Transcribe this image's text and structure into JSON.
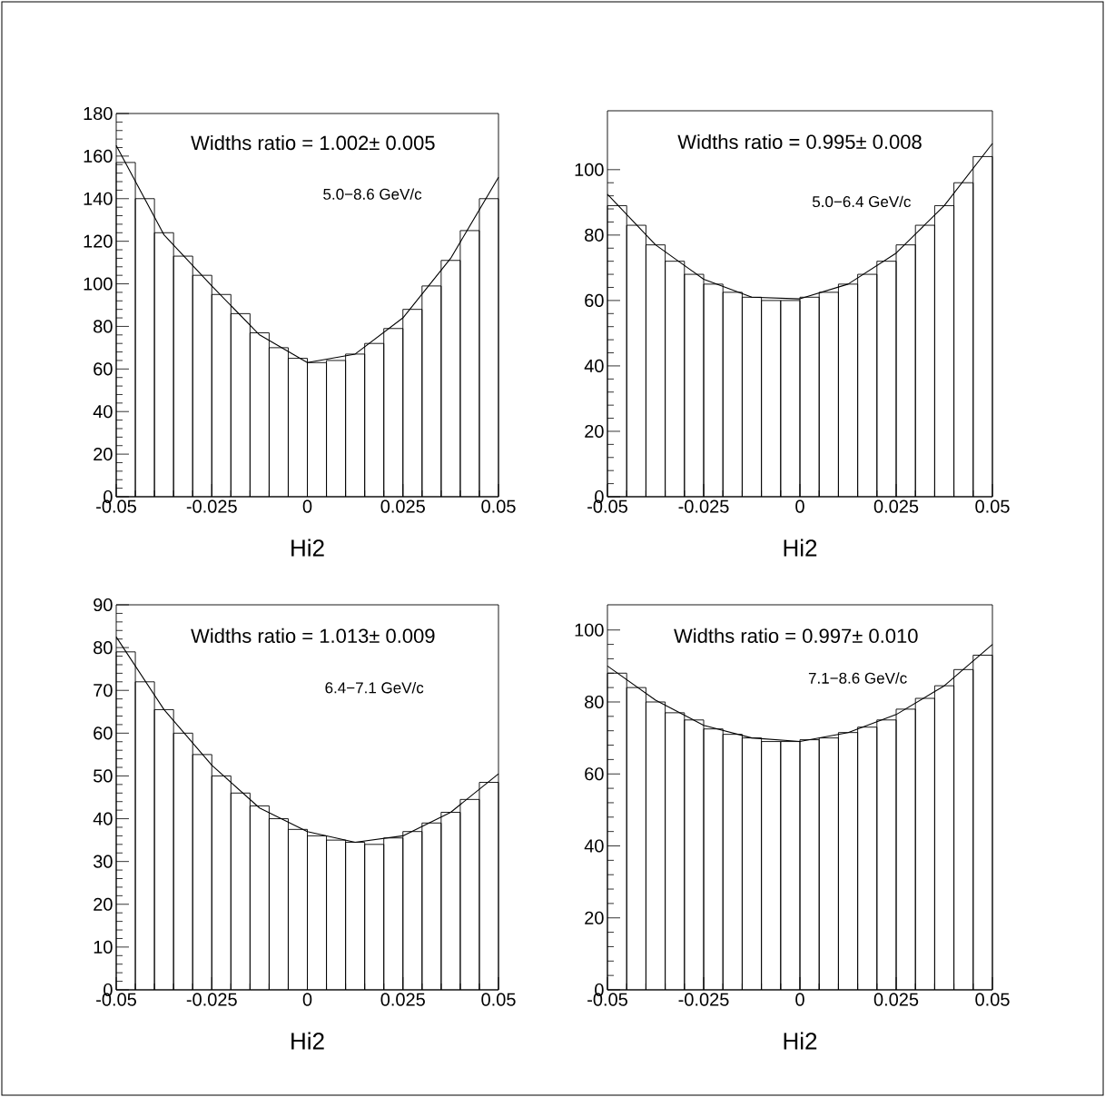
{
  "chart_data": [
    {
      "type": "histogram",
      "xlabel": "Hi2",
      "color": "#000000",
      "xlim": [
        -0.05,
        0.05
      ],
      "ylim": [
        0,
        180
      ],
      "xticks": [
        -0.05,
        -0.025,
        0,
        0.025,
        0.05
      ],
      "yticks": [
        0,
        20,
        40,
        60,
        80,
        100,
        120,
        140,
        160,
        180
      ],
      "bins": [
        -0.05,
        -0.045,
        -0.04,
        -0.035,
        -0.03,
        -0.025,
        -0.02,
        -0.015,
        -0.01,
        -0.005,
        0,
        0.005,
        0.01,
        0.015,
        0.02,
        0.025,
        0.03,
        0.035,
        0.04,
        0.045,
        0.05
      ],
      "values": [
        157,
        140,
        124,
        113,
        104,
        95,
        86,
        77,
        70,
        65,
        63,
        64,
        67,
        72,
        79,
        88,
        99,
        111,
        125,
        140
      ],
      "series": [
        {
          "type": "line",
          "color": "#000000",
          "x": [
            -0.05,
            -0.0375,
            -0.025,
            -0.0125,
            0,
            0.0125,
            0.025,
            0.0375,
            0.05
          ],
          "values": [
            165,
            123,
            99,
            76,
            63,
            67,
            84,
            112,
            150
          ]
        }
      ],
      "annotations": [
        "Widths ratio = 1.002± 0.005",
        "5.0−8.6 GeV/c"
      ]
    },
    {
      "type": "histogram",
      "xlabel": "Hi2",
      "color": "#000000",
      "xlim": [
        -0.05,
        0.05
      ],
      "ylim": [
        0,
        118
      ],
      "xticks": [
        -0.05,
        -0.025,
        0,
        0.025,
        0.05
      ],
      "yticks": [
        0,
        20,
        40,
        60,
        80,
        100
      ],
      "bins": [
        -0.05,
        -0.045,
        -0.04,
        -0.035,
        -0.03,
        -0.025,
        -0.02,
        -0.015,
        -0.01,
        -0.005,
        0,
        0.005,
        0.01,
        0.015,
        0.02,
        0.025,
        0.03,
        0.035,
        0.04,
        0.045,
        0.05
      ],
      "values": [
        89,
        83,
        77,
        72,
        68,
        65,
        62.5,
        61,
        60,
        60,
        61,
        62.5,
        65,
        68,
        72,
        77,
        83,
        89,
        96,
        104
      ],
      "series": [
        {
          "type": "line",
          "color": "#000000",
          "x": [
            -0.05,
            -0.0375,
            -0.025,
            -0.0125,
            0,
            0.0125,
            0.025,
            0.0375,
            0.05
          ],
          "values": [
            92.5,
            77,
            66.5,
            61,
            60.5,
            65,
            74.5,
            89,
            108
          ]
        }
      ],
      "annotations": [
        "Widths ratio = 0.995± 0.008",
        "5.0−6.4 GeV/c"
      ]
    },
    {
      "type": "histogram",
      "xlabel": "Hi2",
      "color": "#000000",
      "xlim": [
        -0.05,
        0.05
      ],
      "ylim": [
        0,
        90
      ],
      "xticks": [
        -0.05,
        -0.025,
        0,
        0.025,
        0.05
      ],
      "yticks": [
        0,
        10,
        20,
        30,
        40,
        50,
        60,
        70,
        80,
        90
      ],
      "bins": [
        -0.05,
        -0.045,
        -0.04,
        -0.035,
        -0.03,
        -0.025,
        -0.02,
        -0.015,
        -0.01,
        -0.005,
        0,
        0.005,
        0.01,
        0.015,
        0.02,
        0.025,
        0.03,
        0.035,
        0.04,
        0.045,
        0.05
      ],
      "values": [
        79,
        72,
        65.5,
        60,
        55,
        50,
        46,
        43,
        40,
        37.5,
        36,
        35,
        34.5,
        34,
        35.5,
        37,
        39,
        41.5,
        44.5,
        48.5
      ],
      "series": [
        {
          "type": "line",
          "color": "#000000",
          "x": [
            -0.05,
            -0.0375,
            -0.025,
            -0.0125,
            0,
            0.0125,
            0.025,
            0.0375,
            0.05
          ],
          "values": [
            82.5,
            65.5,
            52.5,
            42.5,
            37,
            34.5,
            36,
            41.5,
            50.5
          ]
        }
      ],
      "annotations": [
        "Widths ratio = 1.013± 0.009",
        "6.4−7.1 GeV/c"
      ]
    },
    {
      "type": "histogram",
      "xlabel": "Hi2",
      "color": "#000000",
      "xlim": [
        -0.05,
        0.05
      ],
      "ylim": [
        0,
        107
      ],
      "xticks": [
        -0.05,
        -0.025,
        0,
        0.025,
        0.05
      ],
      "yticks": [
        0,
        20,
        40,
        60,
        80,
        100
      ],
      "bins": [
        -0.05,
        -0.045,
        -0.04,
        -0.035,
        -0.03,
        -0.025,
        -0.02,
        -0.015,
        -0.01,
        -0.005,
        0,
        0.005,
        0.01,
        0.015,
        0.02,
        0.025,
        0.03,
        0.035,
        0.04,
        0.045,
        0.05
      ],
      "values": [
        88,
        84,
        80,
        77,
        75,
        72.5,
        71,
        70,
        69,
        69,
        69.5,
        70,
        71.5,
        73,
        75,
        78,
        81,
        84.5,
        89,
        93
      ],
      "series": [
        {
          "type": "line",
          "color": "#000000",
          "x": [
            -0.05,
            -0.0375,
            -0.025,
            -0.0125,
            0,
            0.0125,
            0.025,
            0.0375,
            0.05
          ],
          "values": [
            90,
            80.5,
            73.5,
            70,
            69,
            71.5,
            76.5,
            84.5,
            96
          ]
        }
      ],
      "annotations": [
        "Widths ratio = 0.997± 0.010",
        "7.1−8.6 GeV/c"
      ]
    }
  ]
}
